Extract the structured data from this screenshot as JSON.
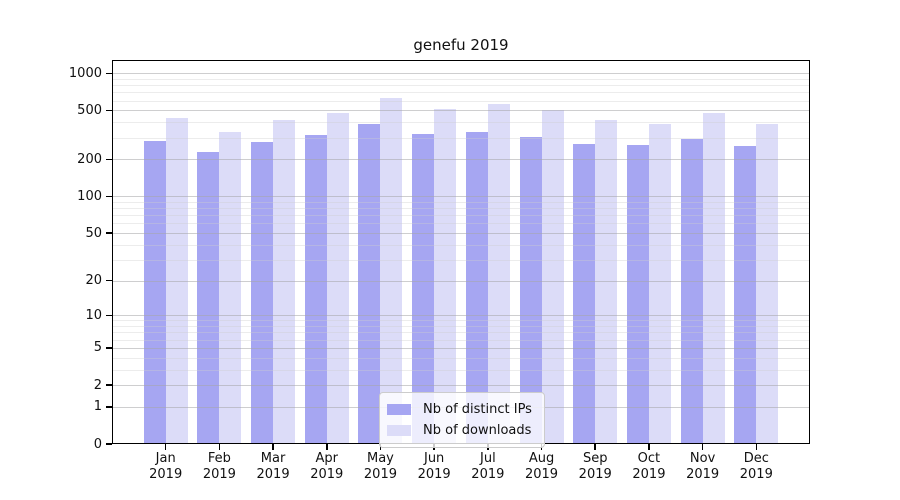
{
  "title": "genefu 2019",
  "chart_data": {
    "type": "bar",
    "title": "genefu 2019",
    "scale": "log1p",
    "grid": "horizontal",
    "legend_position": "lower center",
    "categories": [
      "Jan 2019",
      "Feb 2019",
      "Mar 2019",
      "Apr 2019",
      "May 2019",
      "Jun 2019",
      "Jul 2019",
      "Aug 2019",
      "Sep 2019",
      "Oct 2019",
      "Nov 2019",
      "Dec 2019"
    ],
    "series": [
      {
        "name": "Nb of distinct IPs",
        "color": "#a6a6f2",
        "values": [
          280,
          230,
          275,
          315,
          385,
          320,
          335,
          305,
          265,
          260,
          295,
          255
        ]
      },
      {
        "name": "Nb of downloads",
        "color": "#dcdcf8",
        "values": [
          435,
          335,
          420,
          480,
          635,
          510,
          565,
          500,
          415,
          385,
          480,
          390
        ]
      }
    ],
    "xlabel": "",
    "ylabel": "",
    "y_ticks": [
      0,
      1,
      2,
      5,
      10,
      20,
      50,
      100,
      200,
      500,
      1000
    ],
    "y_minor_ticks": [
      3,
      4,
      6,
      7,
      8,
      9,
      30,
      40,
      60,
      70,
      80,
      90,
      300,
      400,
      600,
      700,
      800,
      900
    ],
    "ylim": [
      0,
      1290
    ]
  },
  "colors": {
    "background": "#ffffff",
    "frame": "#000000",
    "text": "#111111",
    "bar_ips": "#a6a6f2",
    "bar_downloads": "#dcdcf8"
  }
}
